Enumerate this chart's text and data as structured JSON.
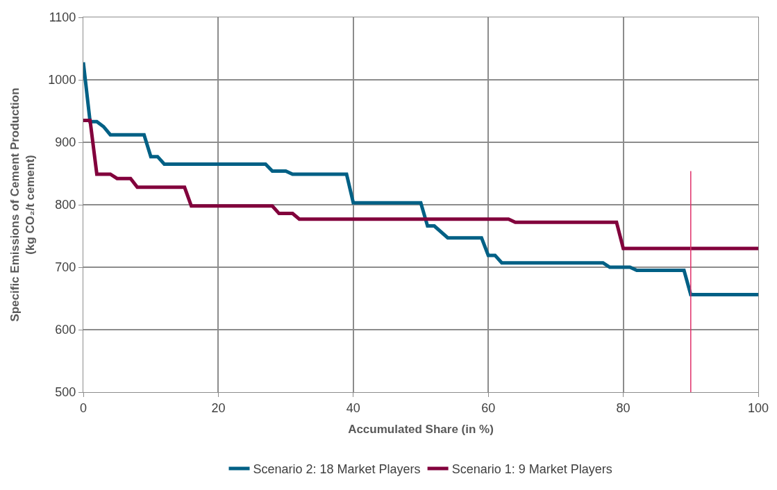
{
  "chart_data": {
    "type": "line",
    "xlabel": "Accumulated Share (in %)",
    "ylabel": "Specific Emissions of Cement Production\n(kg CO₂/t cement)",
    "xlim": [
      0,
      100
    ],
    "xticks": [
      0,
      20,
      40,
      60,
      80,
      100
    ],
    "ylim": [
      500,
      1100
    ],
    "yticks": [
      500,
      600,
      700,
      800,
      900,
      1000,
      1100
    ],
    "grid": true,
    "legend": "bottom",
    "marker": "none",
    "line_style": "solid",
    "series": [
      {
        "name": "Scenario 2: 18 Market Players",
        "color": "#006085",
        "x": [
          0,
          1,
          2,
          3,
          4,
          9,
          10,
          11,
          12,
          27,
          28,
          30,
          31,
          39,
          40,
          50,
          51,
          52,
          54,
          59,
          60,
          61,
          62,
          77,
          78,
          81,
          82,
          89,
          90,
          100
        ],
        "values": [
          1028,
          933,
          933,
          925,
          912,
          912,
          877,
          877,
          865,
          865,
          854,
          854,
          849,
          849,
          803,
          803,
          766,
          766,
          747,
          747,
          719,
          719,
          707,
          707,
          700,
          700,
          695,
          695,
          656,
          656
        ]
      },
      {
        "name": "Scenario 1: 9 Market Players",
        "color": "#82003c",
        "x": [
          0,
          1,
          2,
          4,
          5,
          7,
          8,
          15,
          16,
          28,
          29,
          31,
          32,
          63,
          64,
          79,
          80,
          100
        ],
        "values": [
          935,
          935,
          849,
          849,
          842,
          842,
          828,
          828,
          798,
          798,
          786,
          786,
          777,
          777,
          772,
          772,
          730,
          730
        ]
      }
    ],
    "ref_lines": [
      {
        "axis": "x",
        "value": 90,
        "color": "#e0306a",
        "line_style": "solid"
      }
    ]
  }
}
